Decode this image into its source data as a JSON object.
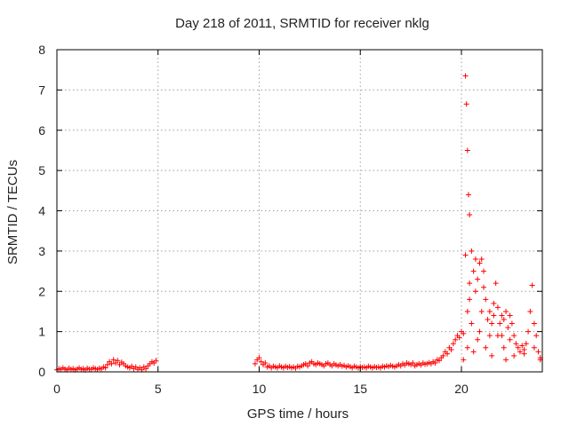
{
  "chart_data": {
    "type": "scatter",
    "title": "Day 218 of 2011, SRMTID for receiver nklg",
    "xlabel": "GPS time / hours",
    "ylabel": "SRMTID / TECUs",
    "xlim": [
      0,
      24
    ],
    "ylim": [
      0,
      8
    ],
    "x_ticks": [
      0,
      5,
      10,
      15,
      20
    ],
    "x_tick_labels": [
      "0",
      "5",
      "10",
      "15",
      "20"
    ],
    "y_ticks": [
      0,
      1,
      2,
      3,
      4,
      5,
      6,
      7,
      8
    ],
    "y_tick_labels": [
      "0",
      "1",
      "2",
      "3",
      "4",
      "5",
      "6",
      "7",
      "8"
    ],
    "grid": true,
    "marker": "+",
    "marker_color": "#ff0000",
    "series": [
      {
        "name": "SRMTID",
        "points": [
          [
            0.0,
            0.05
          ],
          [
            0.1,
            0.08
          ],
          [
            0.2,
            0.06
          ],
          [
            0.3,
            0.1
          ],
          [
            0.4,
            0.07
          ],
          [
            0.5,
            0.05
          ],
          [
            0.6,
            0.09
          ],
          [
            0.7,
            0.06
          ],
          [
            0.8,
            0.08
          ],
          [
            0.9,
            0.05
          ],
          [
            1.0,
            0.07
          ],
          [
            1.1,
            0.1
          ],
          [
            1.2,
            0.06
          ],
          [
            1.3,
            0.08
          ],
          [
            1.4,
            0.05
          ],
          [
            1.5,
            0.09
          ],
          [
            1.6,
            0.07
          ],
          [
            1.7,
            0.06
          ],
          [
            1.8,
            0.1
          ],
          [
            1.9,
            0.08
          ],
          [
            2.0,
            0.06
          ],
          [
            2.1,
            0.09
          ],
          [
            2.2,
            0.07
          ],
          [
            2.3,
            0.12
          ],
          [
            2.4,
            0.1
          ],
          [
            2.5,
            0.18
          ],
          [
            2.6,
            0.25
          ],
          [
            2.7,
            0.2
          ],
          [
            2.8,
            0.3
          ],
          [
            2.9,
            0.22
          ],
          [
            3.0,
            0.28
          ],
          [
            3.1,
            0.18
          ],
          [
            3.2,
            0.24
          ],
          [
            3.3,
            0.2
          ],
          [
            3.4,
            0.15
          ],
          [
            3.5,
            0.12
          ],
          [
            3.6,
            0.1
          ],
          [
            3.7,
            0.14
          ],
          [
            3.8,
            0.08
          ],
          [
            3.9,
            0.12
          ],
          [
            4.0,
            0.06
          ],
          [
            4.1,
            0.1
          ],
          [
            4.2,
            0.05
          ],
          [
            4.3,
            0.12
          ],
          [
            4.4,
            0.08
          ],
          [
            4.5,
            0.15
          ],
          [
            4.6,
            0.2
          ],
          [
            4.7,
            0.25
          ],
          [
            4.8,
            0.22
          ],
          [
            4.9,
            0.28
          ],
          [
            9.8,
            0.2
          ],
          [
            9.9,
            0.3
          ],
          [
            10.0,
            0.35
          ],
          [
            10.1,
            0.25
          ],
          [
            10.2,
            0.18
          ],
          [
            10.3,
            0.22
          ],
          [
            10.4,
            0.12
          ],
          [
            10.5,
            0.15
          ],
          [
            10.6,
            0.1
          ],
          [
            10.7,
            0.14
          ],
          [
            10.8,
            0.12
          ],
          [
            10.9,
            0.1
          ],
          [
            11.0,
            0.15
          ],
          [
            11.1,
            0.12
          ],
          [
            11.2,
            0.1
          ],
          [
            11.3,
            0.14
          ],
          [
            11.4,
            0.11
          ],
          [
            11.5,
            0.13
          ],
          [
            11.6,
            0.1
          ],
          [
            11.7,
            0.12
          ],
          [
            11.8,
            0.09
          ],
          [
            11.9,
            0.14
          ],
          [
            12.0,
            0.12
          ],
          [
            12.1,
            0.15
          ],
          [
            12.2,
            0.18
          ],
          [
            12.3,
            0.2
          ],
          [
            12.4,
            0.15
          ],
          [
            12.5,
            0.22
          ],
          [
            12.6,
            0.25
          ],
          [
            12.7,
            0.2
          ],
          [
            12.8,
            0.18
          ],
          [
            12.9,
            0.22
          ],
          [
            13.0,
            0.2
          ],
          [
            13.1,
            0.18
          ],
          [
            13.2,
            0.15
          ],
          [
            13.3,
            0.2
          ],
          [
            13.4,
            0.22
          ],
          [
            13.5,
            0.18
          ],
          [
            13.6,
            0.15
          ],
          [
            13.7,
            0.2
          ],
          [
            13.8,
            0.17
          ],
          [
            13.9,
            0.15
          ],
          [
            14.0,
            0.18
          ],
          [
            14.1,
            0.14
          ],
          [
            14.2,
            0.16
          ],
          [
            14.3,
            0.12
          ],
          [
            14.4,
            0.15
          ],
          [
            14.5,
            0.13
          ],
          [
            14.6,
            0.1
          ],
          [
            14.7,
            0.14
          ],
          [
            14.8,
            0.12
          ],
          [
            14.9,
            0.1
          ],
          [
            15.0,
            0.13
          ],
          [
            15.1,
            0.11
          ],
          [
            15.2,
            0.12
          ],
          [
            15.3,
            0.1
          ],
          [
            15.4,
            0.14
          ],
          [
            15.5,
            0.12
          ],
          [
            15.6,
            0.1
          ],
          [
            15.7,
            0.13
          ],
          [
            15.8,
            0.11
          ],
          [
            15.9,
            0.12
          ],
          [
            16.0,
            0.1
          ],
          [
            16.1,
            0.14
          ],
          [
            16.2,
            0.12
          ],
          [
            16.3,
            0.15
          ],
          [
            16.4,
            0.13
          ],
          [
            16.5,
            0.16
          ],
          [
            16.6,
            0.14
          ],
          [
            16.7,
            0.12
          ],
          [
            16.8,
            0.15
          ],
          [
            16.9,
            0.18
          ],
          [
            17.0,
            0.15
          ],
          [
            17.1,
            0.2
          ],
          [
            17.2,
            0.17
          ],
          [
            17.3,
            0.22
          ],
          [
            17.4,
            0.2
          ],
          [
            17.5,
            0.18
          ],
          [
            17.6,
            0.22
          ],
          [
            17.7,
            0.15
          ],
          [
            17.8,
            0.18
          ],
          [
            17.9,
            0.2
          ],
          [
            18.0,
            0.17
          ],
          [
            18.1,
            0.22
          ],
          [
            18.2,
            0.19
          ],
          [
            18.3,
            0.2
          ],
          [
            18.4,
            0.23
          ],
          [
            18.5,
            0.2
          ],
          [
            18.6,
            0.25
          ],
          [
            18.7,
            0.22
          ],
          [
            18.8,
            0.3
          ],
          [
            18.9,
            0.28
          ],
          [
            19.0,
            0.35
          ],
          [
            19.1,
            0.4
          ],
          [
            19.2,
            0.5
          ],
          [
            19.3,
            0.45
          ],
          [
            19.4,
            0.6
          ],
          [
            19.5,
            0.55
          ],
          [
            19.6,
            0.7
          ],
          [
            19.7,
            0.8
          ],
          [
            19.8,
            0.9
          ],
          [
            19.9,
            0.85
          ],
          [
            20.0,
            1.0
          ],
          [
            20.1,
            0.95
          ],
          [
            20.2,
            7.35
          ],
          [
            20.25,
            6.65
          ],
          [
            20.3,
            5.5
          ],
          [
            20.35,
            4.4
          ],
          [
            20.4,
            3.9
          ],
          [
            20.2,
            2.9
          ],
          [
            20.3,
            1.5
          ],
          [
            20.4,
            2.2
          ],
          [
            20.5,
            3.0
          ],
          [
            20.6,
            2.5
          ],
          [
            20.7,
            2.0
          ],
          [
            20.8,
            2.3
          ],
          [
            20.9,
            2.7
          ],
          [
            21.0,
            2.8
          ],
          [
            21.1,
            2.1
          ],
          [
            21.2,
            1.8
          ],
          [
            21.3,
            1.3
          ],
          [
            21.4,
            1.5
          ],
          [
            21.5,
            1.2
          ],
          [
            21.6,
            1.7
          ],
          [
            21.7,
            2.2
          ],
          [
            21.8,
            1.6
          ],
          [
            21.9,
            1.2
          ],
          [
            22.0,
            0.9
          ],
          [
            22.1,
            1.3
          ],
          [
            22.2,
            1.5
          ],
          [
            22.3,
            1.1
          ],
          [
            22.4,
            1.4
          ],
          [
            22.5,
            1.2
          ],
          [
            22.6,
            0.9
          ],
          [
            22.7,
            0.7
          ],
          [
            22.8,
            0.6
          ],
          [
            22.9,
            0.5
          ],
          [
            23.0,
            0.65
          ],
          [
            23.1,
            0.55
          ],
          [
            23.2,
            0.7
          ],
          [
            23.3,
            1.0
          ],
          [
            23.4,
            1.5
          ],
          [
            23.5,
            2.15
          ],
          [
            23.6,
            1.2
          ],
          [
            23.7,
            0.9
          ],
          [
            23.8,
            0.5
          ],
          [
            23.9,
            0.35
          ],
          [
            20.6,
            0.5
          ],
          [
            20.8,
            0.8
          ],
          [
            21.0,
            1.5
          ],
          [
            21.2,
            0.6
          ],
          [
            21.5,
            0.4
          ],
          [
            21.8,
            0.9
          ],
          [
            22.1,
            0.6
          ],
          [
            22.4,
            0.8
          ],
          [
            20.1,
            0.3
          ],
          [
            20.3,
            0.6
          ],
          [
            20.5,
            1.2
          ],
          [
            20.9,
            1.0
          ],
          [
            21.4,
            0.9
          ],
          [
            22.0,
            1.4
          ],
          [
            22.6,
            0.4
          ],
          [
            23.1,
            0.45
          ],
          [
            23.6,
            0.6
          ],
          [
            23.9,
            0.3
          ],
          [
            20.4,
            1.8
          ],
          [
            20.7,
            2.8
          ],
          [
            21.1,
            2.5
          ],
          [
            21.6,
            1.4
          ],
          [
            22.2,
            0.3
          ]
        ]
      }
    ]
  }
}
